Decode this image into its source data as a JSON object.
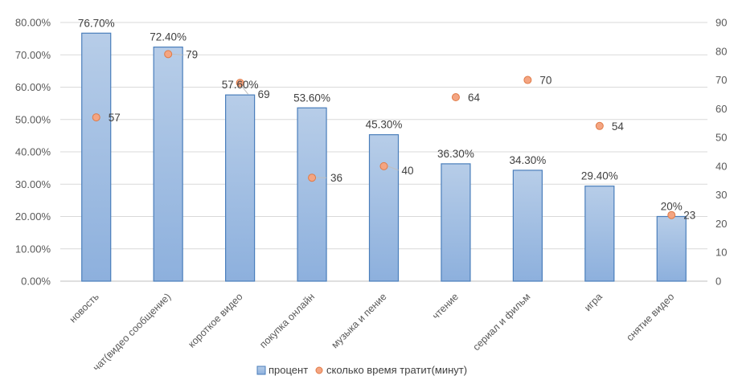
{
  "chart_data": {
    "type": "bar",
    "title": "",
    "categories": [
      "новость",
      "чат(видео сообщение)",
      "короткое видео",
      "покупка онлайн",
      "музыка и пение",
      "чтение",
      "сериал и фильм",
      "игра",
      "снятие видео"
    ],
    "series": [
      {
        "name": "процент",
        "type": "bar",
        "axis": "left",
        "values": [
          76.7,
          72.4,
          57.6,
          53.6,
          45.3,
          36.3,
          34.3,
          29.4,
          20
        ],
        "labels": [
          "76.70%",
          "72.40%",
          "57.60%",
          "53.60%",
          "45.30%",
          "36.30%",
          "34.30%",
          "29.40%",
          "20%"
        ]
      },
      {
        "name": "сколько время тратит(минут)",
        "type": "scatter",
        "axis": "right",
        "values": [
          57,
          79,
          69,
          36,
          40,
          64,
          70,
          54,
          23
        ],
        "labels": [
          "57",
          "79",
          "69",
          "36",
          "40",
          "64",
          "70",
          "54",
          "23"
        ]
      }
    ],
    "y_left": {
      "lim": [
        0,
        80
      ],
      "ticks": [
        0,
        10,
        20,
        30,
        40,
        50,
        60,
        70,
        80
      ],
      "tick_labels": [
        "0.00%",
        "10.00%",
        "20.00%",
        "30.00%",
        "40.00%",
        "50.00%",
        "60.00%",
        "70.00%",
        "80.00%"
      ]
    },
    "y_right": {
      "lim": [
        0,
        90
      ],
      "ticks": [
        0,
        10,
        20,
        30,
        40,
        50,
        60,
        70,
        80,
        90
      ],
      "tick_labels": [
        "0",
        "10",
        "20",
        "30",
        "40",
        "50",
        "60",
        "70",
        "80",
        "90"
      ]
    },
    "grid": true,
    "legend": "bottom",
    "colors": {
      "bar_top": "#b7cde8",
      "bar_bottom": "#8db0dd",
      "bar_stroke": "#4a7ebb",
      "dot_fill": "#f4a582",
      "dot_stroke": "#e07a46",
      "grid": "#d9d9d9",
      "text": "#595959"
    }
  }
}
